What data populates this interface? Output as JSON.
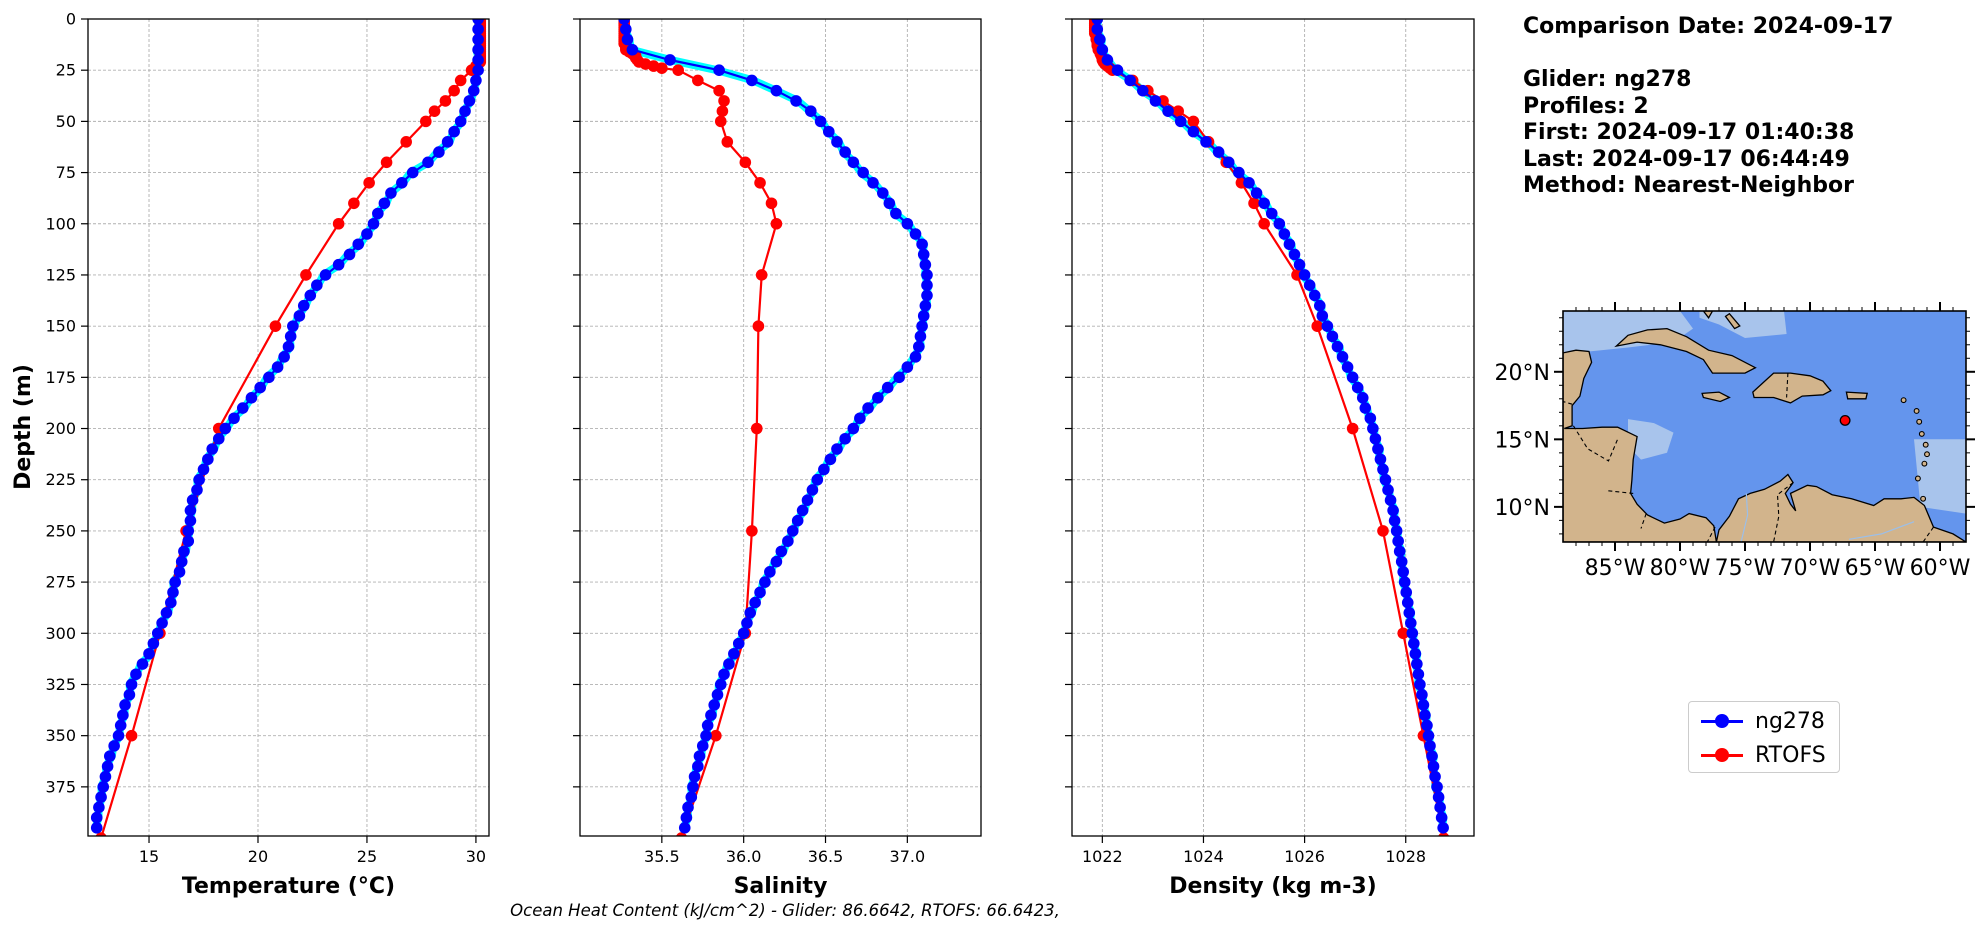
{
  "info": {
    "comparison_date": "Comparison Date: 2024-09-17",
    "glider": "Glider: ng278",
    "profiles": "Profiles: 2",
    "first": "First: 2024-09-17 01:40:38",
    "last": "Last: 2024-09-17 06:44:49",
    "method": "Method: Nearest-Neighbor"
  },
  "footer": "Ocean Heat Content (kJ/cm^2) - Glider: 86.6642,  RTOFS: 66.6423,",
  "legend": [
    {
      "label": "ng278",
      "color": "#0000ff"
    },
    {
      "label": "RTOFS",
      "color": "#ff0000"
    }
  ],
  "colors": {
    "glider": "#0000ff",
    "rtofs": "#ff0000",
    "raw": "#00ffff",
    "grid": "#b0b0b0",
    "ocean": "#6495ed",
    "shelf": "#a8c4ec",
    "land": "#d2b48c"
  },
  "chart_data": [
    {
      "type": "line",
      "xlabel": "Temperature (°C)",
      "ylabel": "Depth (m)",
      "xlim": [
        12.2,
        30.6
      ],
      "ylim": [
        399,
        0
      ],
      "xticks": [
        15,
        20,
        25,
        30
      ],
      "yticks": [
        0,
        25,
        50,
        75,
        100,
        125,
        150,
        175,
        200,
        225,
        250,
        275,
        300,
        325,
        350,
        375
      ],
      "grid": true,
      "series": [
        {
          "name": "ng278",
          "depth": [
            0,
            5,
            10,
            15,
            20,
            25,
            30,
            35,
            40,
            45,
            50,
            55,
            60,
            65,
            70,
            75,
            80,
            85,
            90,
            95,
            100,
            105,
            110,
            115,
            120,
            125,
            130,
            135,
            140,
            145,
            150,
            155,
            160,
            165,
            170,
            175,
            180,
            185,
            190,
            195,
            200,
            205,
            210,
            215,
            220,
            225,
            230,
            235,
            240,
            245,
            250,
            255,
            260,
            265,
            270,
            275,
            280,
            285,
            290,
            295,
            300,
            305,
            310,
            315,
            320,
            325,
            330,
            335,
            340,
            345,
            350,
            355,
            360,
            365,
            370,
            375,
            380,
            385,
            390,
            395
          ],
          "values": [
            30.1,
            30.1,
            30.1,
            30.1,
            30.1,
            30.1,
            30.0,
            29.9,
            29.7,
            29.5,
            29.3,
            29.0,
            28.7,
            28.3,
            27.8,
            27.1,
            26.6,
            26.1,
            25.8,
            25.5,
            25.3,
            25.0,
            24.6,
            24.2,
            23.7,
            23.1,
            22.7,
            22.4,
            22.1,
            21.9,
            21.6,
            21.5,
            21.4,
            21.2,
            20.9,
            20.5,
            20.1,
            19.7,
            19.3,
            18.9,
            18.5,
            18.2,
            17.9,
            17.7,
            17.5,
            17.3,
            17.2,
            17.0,
            16.9,
            16.9,
            16.8,
            16.8,
            16.6,
            16.5,
            16.4,
            16.2,
            16.1,
            16.0,
            15.8,
            15.6,
            15.4,
            15.2,
            15.0,
            14.7,
            14.4,
            14.2,
            14.1,
            13.9,
            13.8,
            13.7,
            13.6,
            13.4,
            13.2,
            13.1,
            13.0,
            12.9,
            12.8,
            12.7,
            12.6,
            12.6
          ]
        },
        {
          "name": "RTOFS",
          "depth": [
            1,
            2,
            3,
            4,
            5,
            6,
            7,
            8,
            9,
            10,
            11,
            12,
            13,
            14,
            15,
            16,
            17,
            18,
            19,
            20,
            21,
            22,
            23,
            24,
            25,
            30,
            35,
            40,
            45,
            50,
            60,
            70,
            80,
            90,
            100,
            125,
            150,
            200,
            250,
            300,
            350,
            400
          ],
          "values": [
            30.2,
            30.2,
            30.2,
            30.2,
            30.2,
            30.2,
            30.2,
            30.2,
            30.2,
            30.2,
            30.2,
            30.2,
            30.2,
            30.2,
            30.2,
            30.2,
            30.2,
            30.2,
            30.2,
            30.2,
            30.2,
            30.1,
            30.0,
            30.0,
            29.8,
            29.3,
            29.0,
            28.6,
            28.1,
            27.7,
            26.8,
            25.9,
            25.1,
            24.4,
            23.7,
            22.2,
            20.8,
            18.2,
            16.7,
            15.5,
            14.2,
            12.8
          ]
        },
        {
          "name": "",
          "role": "raw profiles"
        }
      ]
    },
    {
      "type": "line",
      "xlabel": "Salinity",
      "xlim": [
        35.0,
        37.45
      ],
      "ylim": [
        399,
        0
      ],
      "xticks": [
        35.5,
        36.0,
        36.5,
        37.0
      ],
      "grid": true,
      "series": [
        {
          "name": "ng278",
          "depth": [
            0,
            5,
            10,
            15,
            20,
            25,
            30,
            35,
            40,
            45,
            50,
            55,
            60,
            65,
            70,
            75,
            80,
            85,
            90,
            95,
            100,
            105,
            110,
            115,
            120,
            125,
            130,
            135,
            140,
            145,
            150,
            155,
            160,
            165,
            170,
            175,
            180,
            185,
            190,
            195,
            200,
            205,
            210,
            215,
            220,
            225,
            230,
            235,
            240,
            245,
            250,
            255,
            260,
            265,
            270,
            275,
            280,
            285,
            290,
            295,
            300,
            305,
            310,
            315,
            320,
            325,
            330,
            335,
            340,
            345,
            350,
            355,
            360,
            365,
            370,
            375,
            380,
            385,
            390,
            395
          ],
          "values": [
            35.27,
            35.28,
            35.29,
            35.32,
            35.55,
            35.85,
            36.05,
            36.2,
            36.32,
            36.41,
            36.47,
            36.52,
            36.57,
            36.62,
            36.67,
            36.73,
            36.79,
            36.85,
            36.89,
            36.93,
            37.0,
            37.05,
            37.09,
            37.1,
            37.11,
            37.12,
            37.12,
            37.12,
            37.11,
            37.1,
            37.09,
            37.08,
            37.07,
            37.05,
            37.0,
            36.95,
            36.88,
            36.82,
            36.76,
            36.71,
            36.67,
            36.62,
            36.57,
            36.53,
            36.49,
            36.45,
            36.42,
            36.39,
            36.36,
            36.33,
            36.3,
            36.27,
            36.23,
            36.2,
            36.16,
            36.13,
            36.1,
            36.07,
            36.04,
            36.02,
            36.0,
            35.97,
            35.94,
            35.91,
            35.88,
            35.86,
            35.84,
            35.82,
            35.8,
            35.78,
            35.77,
            35.75,
            35.73,
            35.72,
            35.7,
            35.69,
            35.68,
            35.66,
            35.65,
            35.64
          ]
        },
        {
          "name": "RTOFS",
          "depth": [
            1,
            2,
            3,
            4,
            5,
            6,
            7,
            8,
            9,
            10,
            11,
            12,
            13,
            14,
            15,
            16,
            17,
            18,
            19,
            20,
            21,
            22,
            23,
            24,
            25,
            30,
            35,
            40,
            45,
            50,
            60,
            70,
            80,
            90,
            100,
            125,
            150,
            200,
            250,
            300,
            350,
            400
          ],
          "values": [
            35.27,
            35.27,
            35.27,
            35.27,
            35.27,
            35.27,
            35.27,
            35.27,
            35.27,
            35.27,
            35.27,
            35.27,
            35.28,
            35.28,
            35.28,
            35.3,
            35.32,
            35.34,
            35.34,
            35.35,
            35.36,
            35.4,
            35.45,
            35.5,
            35.6,
            35.72,
            35.85,
            35.88,
            35.87,
            35.86,
            35.9,
            36.01,
            36.1,
            36.17,
            36.2,
            36.11,
            36.09,
            36.08,
            36.05,
            36.01,
            35.83,
            35.62
          ]
        },
        {
          "name": "",
          "role": "raw profiles"
        }
      ]
    },
    {
      "type": "line",
      "xlabel": "Density (kg m-3)",
      "xlim": [
        1021.4,
        1029.35
      ],
      "ylim": [
        399,
        0
      ],
      "xticks": [
        1022,
        1024,
        1026,
        1028
      ],
      "grid": true,
      "series": [
        {
          "name": "ng278",
          "depth": [
            0,
            5,
            10,
            15,
            20,
            25,
            30,
            35,
            40,
            45,
            50,
            55,
            60,
            65,
            70,
            75,
            80,
            85,
            90,
            95,
            100,
            105,
            110,
            115,
            120,
            125,
            130,
            135,
            140,
            145,
            150,
            155,
            160,
            165,
            170,
            175,
            180,
            185,
            190,
            195,
            200,
            205,
            210,
            215,
            220,
            225,
            230,
            235,
            240,
            245,
            250,
            255,
            260,
            265,
            270,
            275,
            280,
            285,
            290,
            295,
            300,
            305,
            310,
            315,
            320,
            325,
            330,
            335,
            340,
            345,
            350,
            355,
            360,
            365,
            370,
            375,
            380,
            385,
            390,
            395
          ],
          "values": [
            1021.9,
            1021.9,
            1021.95,
            1022.0,
            1022.1,
            1022.3,
            1022.55,
            1022.8,
            1023.05,
            1023.3,
            1023.55,
            1023.8,
            1024.05,
            1024.3,
            1024.5,
            1024.7,
            1024.9,
            1025.05,
            1025.2,
            1025.35,
            1025.5,
            1025.6,
            1025.7,
            1025.8,
            1025.9,
            1026.0,
            1026.1,
            1026.2,
            1026.3,
            1026.35,
            1026.45,
            1026.55,
            1026.65,
            1026.75,
            1026.85,
            1026.95,
            1027.05,
            1027.15,
            1027.2,
            1027.3,
            1027.35,
            1027.4,
            1027.45,
            1027.5,
            1027.55,
            1027.6,
            1027.65,
            1027.7,
            1027.75,
            1027.78,
            1027.82,
            1027.85,
            1027.88,
            1027.92,
            1027.95,
            1027.98,
            1028.01,
            1028.04,
            1028.07,
            1028.1,
            1028.13,
            1028.16,
            1028.19,
            1028.22,
            1028.25,
            1028.28,
            1028.32,
            1028.35,
            1028.38,
            1028.42,
            1028.45,
            1028.48,
            1028.52,
            1028.55,
            1028.58,
            1028.62,
            1028.65,
            1028.68,
            1028.71,
            1028.74
          ]
        },
        {
          "name": "RTOFS",
          "depth": [
            1,
            2,
            3,
            4,
            5,
            6,
            7,
            8,
            9,
            10,
            11,
            12,
            13,
            14,
            15,
            16,
            17,
            18,
            19,
            20,
            21,
            22,
            23,
            24,
            25,
            30,
            35,
            40,
            45,
            50,
            60,
            70,
            80,
            90,
            100,
            125,
            150,
            200,
            250,
            300,
            350,
            400
          ],
          "values": [
            1021.85,
            1021.85,
            1021.85,
            1021.85,
            1021.85,
            1021.85,
            1021.85,
            1021.88,
            1021.88,
            1021.88,
            1021.9,
            1021.9,
            1021.9,
            1021.92,
            1021.92,
            1021.95,
            1021.96,
            1021.98,
            1022.0,
            1022.0,
            1022.02,
            1022.05,
            1022.1,
            1022.15,
            1022.2,
            1022.6,
            1022.9,
            1023.2,
            1023.5,
            1023.8,
            1024.1,
            1024.45,
            1024.75,
            1025.0,
            1025.2,
            1025.85,
            1026.25,
            1026.95,
            1027.55,
            1027.95,
            1028.35,
            1028.75
          ]
        },
        {
          "name": "",
          "role": "raw profiles"
        }
      ]
    },
    {
      "type": "map",
      "lat_ticks": [
        "20°N",
        "15°N",
        "10°N"
      ],
      "lon_ticks": [
        "85°W",
        "80°W",
        "75°W",
        "70°W",
        "65°W",
        "60°W"
      ],
      "lat_values": [
        20,
        15,
        10
      ],
      "lon_values": [
        -85,
        -80,
        -75,
        -70,
        -65,
        -60
      ],
      "extent": [
        -89,
        -58,
        7.4,
        24.5
      ],
      "marker": {
        "lon": -67.3,
        "lat": 16.4
      }
    }
  ]
}
